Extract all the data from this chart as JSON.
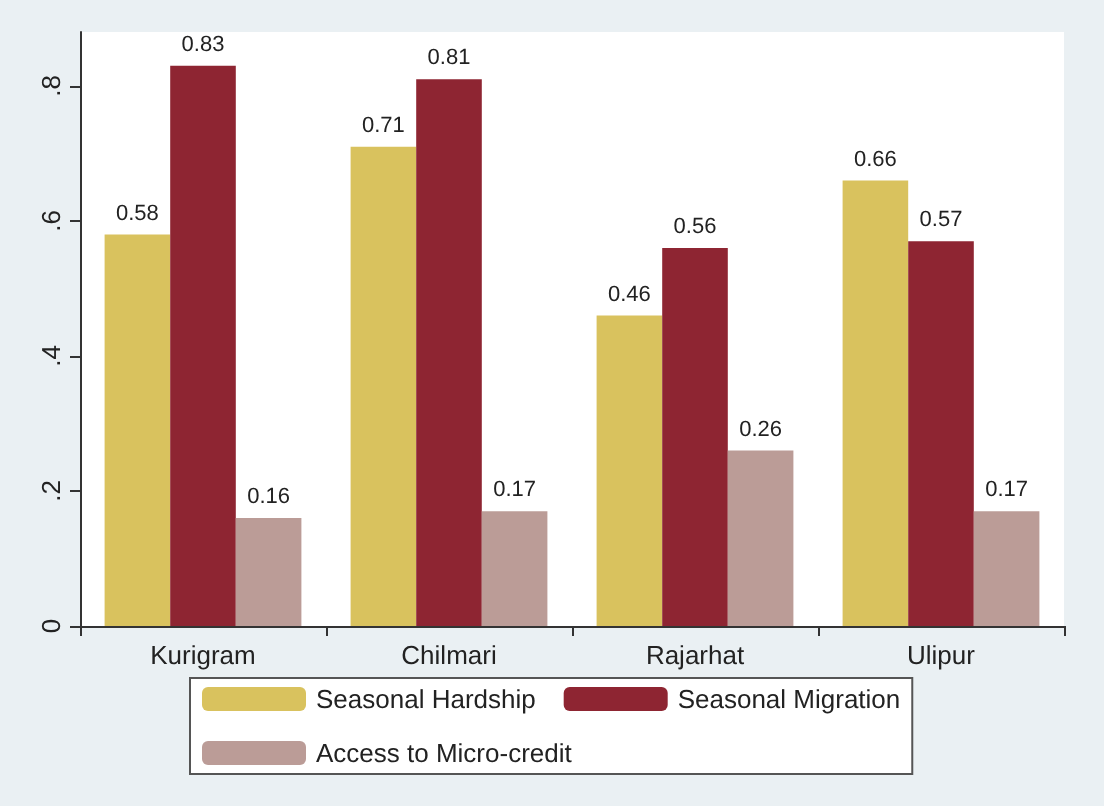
{
  "chart_data": {
    "type": "bar",
    "categories": [
      "Kurigram",
      "Chilmari",
      "Rajarhat",
      "Ulipur"
    ],
    "series": [
      {
        "name": "Seasonal Hardship",
        "color": "#d9c25e",
        "values": [
          0.58,
          0.71,
          0.46,
          0.66
        ]
      },
      {
        "name": "Seasonal Migration",
        "color": "#8e2532",
        "values": [
          0.83,
          0.81,
          0.56,
          0.57
        ]
      },
      {
        "name": "Access to Micro-credit",
        "color": "#bb9c97",
        "values": [
          0.16,
          0.17,
          0.26,
          0.17
        ]
      }
    ],
    "ylim": [
      0,
      0.88
    ],
    "yticks": [
      0,
      {
        "value": 0.2,
        "label": ".2"
      },
      {
        "value": 0.4,
        "label": ".4"
      },
      {
        "value": 0.6,
        "label": ".6"
      },
      {
        "value": 0.8,
        "label": ".8"
      }
    ],
    "data_labels": true,
    "grid": false,
    "legend": "bottom"
  }
}
